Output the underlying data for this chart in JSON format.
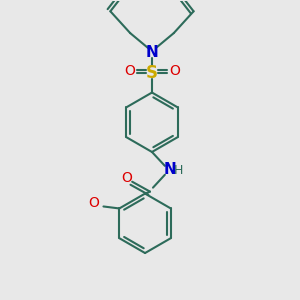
{
  "bg_color": "#e8e8e8",
  "bond_color": "#2d6b5a",
  "n_color": "#0000cc",
  "o_color": "#dd0000",
  "s_color": "#ccaa00",
  "line_width": 1.5,
  "font_size": 10,
  "fig_size": [
    3.0,
    3.0
  ],
  "dpi": 100,
  "xlim": [
    0,
    300
  ],
  "ylim": [
    0,
    300
  ]
}
